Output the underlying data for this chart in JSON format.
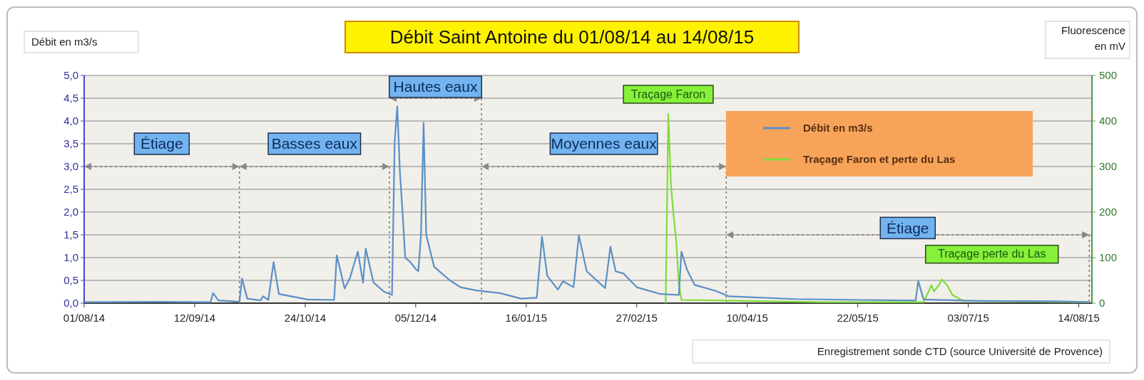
{
  "chart_data": {
    "type": "line",
    "title": "Débit Saint Antoine du 01/08/14 au 14/08/15",
    "ylabel": "Débit en m3/s",
    "y2label": "Fluorescence en mV",
    "xlim": [
      "2014-08-01",
      "2015-08-19"
    ],
    "xticks": [
      {
        "value": "2014-08-01",
        "label": "01/08/14"
      },
      {
        "value": "2014-09-12",
        "label": "12/09/14"
      },
      {
        "value": "2014-10-24",
        "label": "24/10/14"
      },
      {
        "value": "2014-12-05",
        "label": "05/12/14"
      },
      {
        "value": "2015-01-16",
        "label": "16/01/15"
      },
      {
        "value": "2015-02-27",
        "label": "27/02/15"
      },
      {
        "value": "2015-04-10",
        "label": "10/04/15"
      },
      {
        "value": "2015-05-22",
        "label": "22/05/15"
      },
      {
        "value": "2015-07-03",
        "label": "03/07/15"
      },
      {
        "value": "2015-08-14",
        "label": "14/08/15"
      }
    ],
    "ylim": [
      0,
      5
    ],
    "yticks": [
      {
        "value": 0,
        "label": "0,0"
      },
      {
        "value": 0.5,
        "label": "0,5"
      },
      {
        "value": 1,
        "label": "1,0"
      },
      {
        "value": 1.5,
        "label": "1,5"
      },
      {
        "value": 2,
        "label": "2,0"
      },
      {
        "value": 2.5,
        "label": "2,5"
      },
      {
        "value": 3,
        "label": "3,0"
      },
      {
        "value": 3.5,
        "label": "3,5"
      },
      {
        "value": 4,
        "label": "4,0"
      },
      {
        "value": 4.5,
        "label": "4,5"
      },
      {
        "value": 5,
        "label": "5,0"
      }
    ],
    "y2lim": [
      0,
      500
    ],
    "y2ticks": [
      0,
      100,
      200,
      300,
      400,
      500
    ],
    "grid": "y",
    "legend": "top right",
    "series": [
      {
        "name": "Débit en m3/s",
        "color": "#5b8fc7",
        "x": [
          "2014-08-01",
          "2014-08-31",
          "2014-09-18",
          "2014-09-19",
          "2014-09-21",
          "2014-09-29",
          "2014-09-30",
          "2014-10-02",
          "2014-10-07",
          "2014-10-08",
          "2014-10-10",
          "2014-10-12",
          "2014-10-14",
          "2014-10-25",
          "2014-11-04",
          "2014-11-05",
          "2014-11-08",
          "2014-11-10",
          "2014-11-13",
          "2014-11-15",
          "2014-11-16",
          "2014-11-19",
          "2014-11-23",
          "2014-11-26",
          "2014-11-27",
          "2014-11-28",
          "2014-11-29",
          "2014-11-30",
          "2014-12-01",
          "2014-12-03",
          "2014-12-05",
          "2014-12-06",
          "2014-12-07",
          "2014-12-08",
          "2014-12-09",
          "2014-12-12",
          "2014-12-18",
          "2014-12-22",
          "2014-12-28",
          "2015-01-06",
          "2015-01-14",
          "2015-01-20",
          "2015-01-22",
          "2015-01-24",
          "2015-01-28",
          "2015-01-30",
          "2015-02-03",
          "2015-02-05",
          "2015-02-08",
          "2015-02-15",
          "2015-02-17",
          "2015-02-19",
          "2015-02-22",
          "2015-02-27",
          "2015-03-08",
          "2015-03-15",
          "2015-03-16",
          "2015-03-18",
          "2015-03-21",
          "2015-03-29",
          "2015-04-03",
          "2015-04-28",
          "2015-05-23",
          "2015-06-13",
          "2015-06-14",
          "2015-06-16",
          "2015-07-07",
          "2015-08-06",
          "2015-08-18"
        ],
        "values": [
          0.02,
          0.03,
          0.02,
          0.22,
          0.06,
          0.03,
          0.54,
          0.1,
          0.06,
          0.15,
          0.07,
          0.9,
          0.2,
          0.08,
          0.07,
          1.05,
          0.32,
          0.55,
          1.13,
          0.45,
          1.2,
          0.45,
          0.25,
          0.18,
          3.54,
          4.32,
          2.88,
          2.0,
          1.0,
          0.9,
          0.75,
          0.7,
          1.5,
          3.96,
          1.5,
          0.8,
          0.5,
          0.35,
          0.28,
          0.22,
          0.1,
          0.12,
          1.46,
          0.6,
          0.3,
          0.48,
          0.35,
          1.49,
          0.7,
          0.33,
          1.24,
          0.7,
          0.65,
          0.35,
          0.2,
          0.18,
          1.13,
          0.75,
          0.4,
          0.27,
          0.15,
          0.09,
          0.07,
          0.06,
          0.49,
          0.08,
          0.05,
          0.04,
          0.02
        ]
      },
      {
        "name": "Traçage Faron et perte du Las",
        "color": "#7ddc3a",
        "axis": "y2",
        "x": [
          "2015-03-10",
          "2015-03-11",
          "2015-03-12",
          "2015-03-13",
          "2015-03-14",
          "2015-03-15",
          "2015-03-16",
          "2015-04-08",
          "2015-05-08",
          "2015-06-16",
          "2015-06-19",
          "2015-06-20",
          "2015-06-22",
          "2015-06-23",
          "2015-06-25",
          "2015-06-27",
          "2015-07-01",
          "2015-08-18"
        ],
        "values": [
          0,
          415,
          260,
          193,
          138,
          43,
          7,
          5,
          2,
          2,
          39,
          26,
          41,
          52,
          39,
          18,
          5,
          2
        ]
      }
    ],
    "ref_lines": [
      {
        "axis": "x",
        "value": "2014-09-29",
        "color": "#777777",
        "line_style": "dotted"
      },
      {
        "axis": "x",
        "value": "2014-11-25",
        "color": "#777777",
        "line_style": "dotted"
      },
      {
        "axis": "x",
        "value": "2014-12-30",
        "color": "#777777",
        "line_style": "dotted"
      },
      {
        "axis": "x",
        "value": "2015-04-02",
        "color": "#777777",
        "line_style": "dotted"
      },
      {
        "axis": "x",
        "value": "2015-08-18",
        "color": "#777777",
        "line_style": "dotted"
      }
    ],
    "annotations": [
      "Étiage",
      "Basses eaux",
      "Hautes eaux",
      "Moyennes eaux",
      "Étiage",
      "Traçage Faron",
      "Traçage perte du Las",
      "Enregistrement sonde CTD (source Université de Provence)"
    ]
  }
}
